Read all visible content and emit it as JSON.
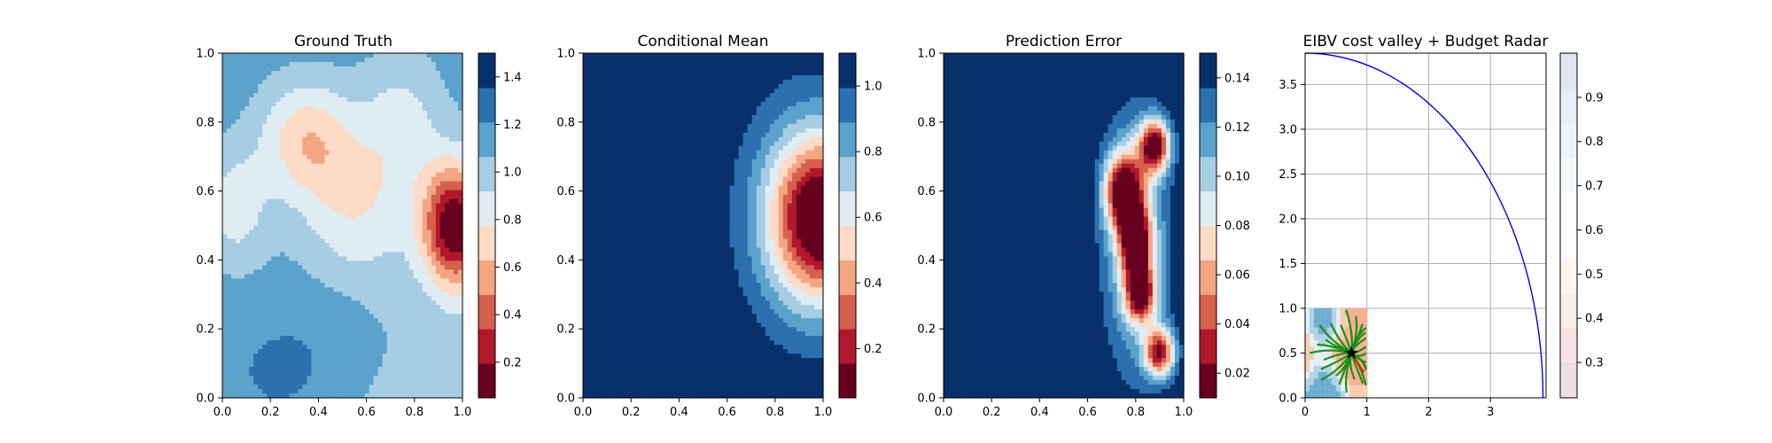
{
  "chart_data": [
    {
      "type": "heatmap",
      "title": "Ground Truth",
      "xlim": [
        0,
        1
      ],
      "ylim": [
        0,
        1
      ],
      "xticks": [
        "0.0",
        "0.2",
        "0.4",
        "0.6",
        "0.8",
        "1.0"
      ],
      "yticks": [
        "0.0",
        "0.2",
        "0.4",
        "0.6",
        "0.8",
        "1.0"
      ],
      "colorbar": {
        "colormap": "RdBu",
        "range": [
          0.05,
          1.5
        ],
        "levels": 10,
        "ticks": [
          "0.2",
          "0.4",
          "0.6",
          "0.8",
          "1.0",
          "1.2",
          "1.4"
        ]
      },
      "field_description": "low values (~0.1) near x 0.9-1.0, y 0.45-0.55 on right edge; values ~1.1-1.3 in lower left region"
    },
    {
      "type": "heatmap",
      "title": "Conditional Mean",
      "xlim": [
        0,
        1
      ],
      "ylim": [
        0,
        1
      ],
      "xticks": [
        "0.0",
        "0.2",
        "0.4",
        "0.6",
        "0.8",
        "1.0"
      ],
      "yticks": [
        "0.0",
        "0.2",
        "0.4",
        "0.6",
        "0.8",
        "1.0"
      ],
      "colorbar": {
        "colormap": "RdBu",
        "range": [
          0.05,
          1.1
        ],
        "levels": 10,
        "ticks": [
          "0.2",
          "0.4",
          "0.6",
          "0.8",
          "1.0"
        ]
      },
      "field_description": "uniform ~1.05 on left/middle; minimum ~0.1 at x 0.97, y 0.52"
    },
    {
      "type": "heatmap",
      "title": "Prediction Error",
      "xlim": [
        0,
        1
      ],
      "ylim": [
        0,
        1
      ],
      "xticks": [
        "0.0",
        "0.2",
        "0.4",
        "0.6",
        "0.8",
        "1.0"
      ],
      "yticks": [
        "0.0",
        "0.2",
        "0.4",
        "0.6",
        "0.8",
        "1.0"
      ],
      "colorbar": {
        "colormap": "RdBu",
        "range": [
          0.01,
          0.15
        ],
        "levels": 10,
        "ticks": [
          "0.02",
          "0.04",
          "0.06",
          "0.08",
          "0.10",
          "0.12",
          "0.14"
        ]
      },
      "field_description": "~0.15 on left; low error band x 0.65-0.95 with minima near (0.75,0.6), (0.88,0.73), (0.82,0.3), (0.9,0.13)"
    },
    {
      "type": "line",
      "title": "EIBV cost valley + Budget Radar",
      "xlim": [
        0,
        3.9
      ],
      "ylim": [
        0,
        3.85
      ],
      "xticks": [
        "0",
        "1",
        "2",
        "3"
      ],
      "yticks": [
        "0.0",
        "0.5",
        "1.0",
        "1.5",
        "2.0",
        "2.5",
        "3.0",
        "3.5"
      ],
      "grid": true,
      "series": [
        {
          "name": "",
          "color": "#0000ff",
          "shape": "quarter circle",
          "center": [
            0,
            0
          ],
          "radius": 3.85
        }
      ],
      "cost_field": {
        "x": [
          0,
          1
        ],
        "y": [
          0,
          1
        ],
        "colormap": "RdBu"
      },
      "current_location": {
        "x": 0.75,
        "y": 0.5,
        "marker": "star"
      },
      "colorbar": {
        "colormap": "RdBu",
        "range": [
          0.22,
          1.0
        ],
        "alpha": 0.15,
        "ticks": [
          "0.3",
          "0.4",
          "0.5",
          "0.6",
          "0.7",
          "0.8",
          "0.9"
        ]
      }
    }
  ]
}
